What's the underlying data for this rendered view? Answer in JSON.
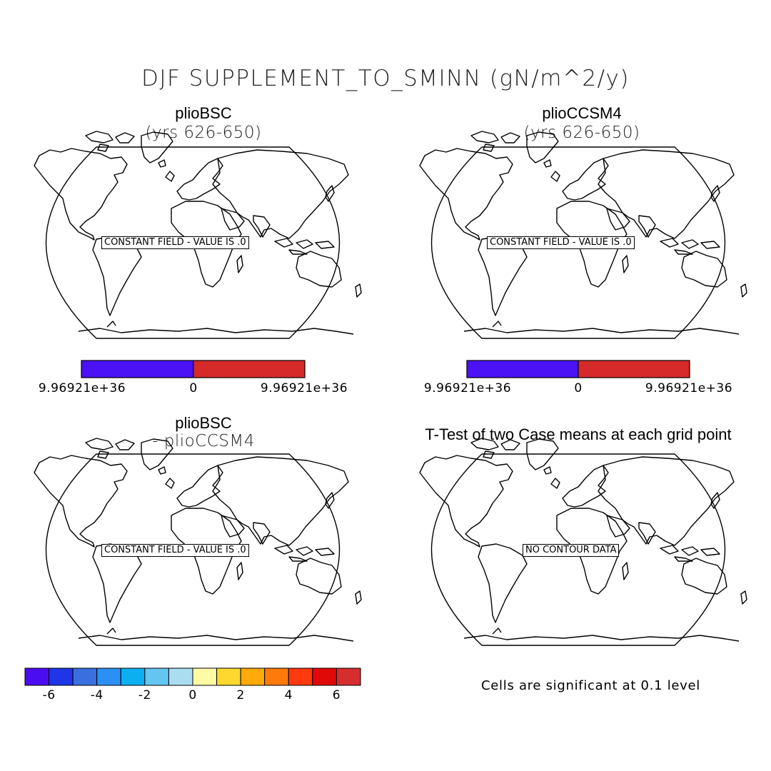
{
  "title": "DJF SUPPLEMENT_TO_SMINN (gN/m^2/y)",
  "panels": [
    {
      "title": "plioBSC",
      "subtitle": "(yrs 626-650)",
      "label": "CONSTANT FIELD - VALUE IS .0"
    },
    {
      "title": "plioCCSM4",
      "subtitle": "(yrs 626-650)",
      "label": "CONSTANT FIELD - VALUE IS .0"
    },
    {
      "title": "plioBSC",
      "subtitle": "- plioCCSM4",
      "label": "CONSTANT FIELD - VALUE IS .0"
    },
    {
      "title": "T-Test of two Case means at each grid point",
      "subtitle": "",
      "label": "NO CONTOUR DATA"
    }
  ],
  "colorbar_top": {
    "colors": [
      "#4A12F5",
      "#D62A2A"
    ],
    "labels": [
      "9.96921e+36",
      "0",
      "9.96921e+36"
    ]
  },
  "colorbar_bottom": {
    "colors": [
      "#4A0CF0",
      "#1E36E6",
      "#3A6FDF",
      "#2A90F4",
      "#0CB0F2",
      "#63C6F1",
      "#ABDDF1",
      "#FEFBA4",
      "#FED82E",
      "#FEAA08",
      "#FE7A0A",
      "#FE3A0E",
      "#E10808",
      "#D62E2E"
    ],
    "labels": [
      "-6",
      "-4",
      "-2",
      "0",
      "2",
      "4",
      "6"
    ]
  },
  "note": "Cells are significant at 0.1 level"
}
